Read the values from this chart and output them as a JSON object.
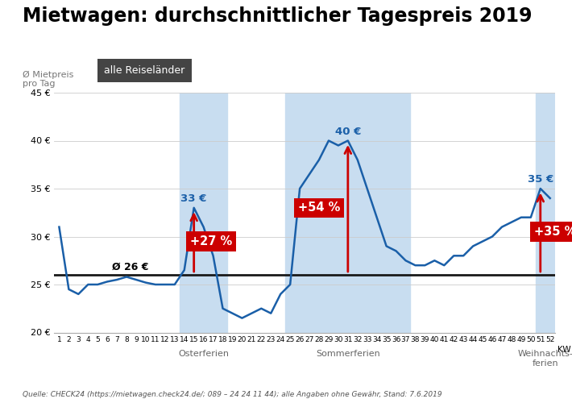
{
  "title": "Mietwagen: durchschnittlicher Tagespreis 2019",
  "ylabel_line1": "Ø Mietpreis",
  "ylabel_line2": "pro Tag",
  "legend_label": "alle Reiseländer",
  "avg_label": "Ø 26 €",
  "avg_value": 26,
  "xlabel_suffix": "KW",
  "ylim": [
    20,
    45
  ],
  "yticks": [
    20,
    25,
    30,
    35,
    40,
    45
  ],
  "ytick_labels": [
    "20 €",
    "25 €",
    "30 €",
    "35 €",
    "40 €",
    "45 €"
  ],
  "line_color": "#1a5fa8",
  "fill_holiday_color": "#c8ddf0",
  "avg_line_color": "#1a1a1a",
  "arrow_color": "#cc0000",
  "badge_color": "#cc0000",
  "badge_text_color": "#ffffff",
  "annotation_color": "#1a5fa8",
  "weeks": [
    1,
    2,
    3,
    4,
    5,
    6,
    7,
    8,
    9,
    10,
    11,
    12,
    13,
    14,
    15,
    16,
    17,
    18,
    19,
    20,
    21,
    22,
    23,
    24,
    25,
    26,
    27,
    28,
    29,
    30,
    31,
    32,
    33,
    34,
    35,
    36,
    37,
    38,
    39,
    40,
    41,
    42,
    43,
    44,
    45,
    46,
    47,
    48,
    49,
    50,
    51,
    52
  ],
  "prices": [
    31,
    24.5,
    24,
    25,
    25,
    25.3,
    25.5,
    25.8,
    25.5,
    25.2,
    25,
    25,
    25,
    26.5,
    33,
    31,
    28,
    22.5,
    22,
    21.5,
    22,
    22.5,
    22,
    24,
    25,
    35,
    36.5,
    38,
    40,
    39.5,
    40,
    38,
    35,
    32,
    29,
    28.5,
    27.5,
    27,
    27,
    27.5,
    27,
    28,
    28,
    29,
    29.5,
    30,
    31,
    31.5,
    32,
    32,
    35,
    34
  ],
  "osterferien_range": [
    14,
    18
  ],
  "sommerferien_range": [
    25,
    37
  ],
  "weihnachtsferien_range": [
    51,
    52
  ],
  "osterferien_label": "Osterferien",
  "sommerferien_label": "Sommerferien",
  "weihnachtsferien_label": "Weihnachts-\nferien",
  "peak_osterferien_week": 15,
  "peak_osterferien_value": 33,
  "peak_osterferien_pct": "+27 %",
  "peak_sommerferien_week": 31,
  "peak_sommerferien_value": 40,
  "peak_sommerferien_pct": "+54 %",
  "peak_weihnachtsferien_week": 51,
  "peak_weihnachtsferien_value": 35,
  "peak_weihnachtsferien_pct": "+35 %",
  "source_text_plain": "Quelle: CHECK24 (",
  "source_url": "https://mietwagen.check24.de/",
  "source_text_after": "; 089 – 24 24 11 44); alle Angaben ohne Gewähr, Stand: 7.6.2019"
}
